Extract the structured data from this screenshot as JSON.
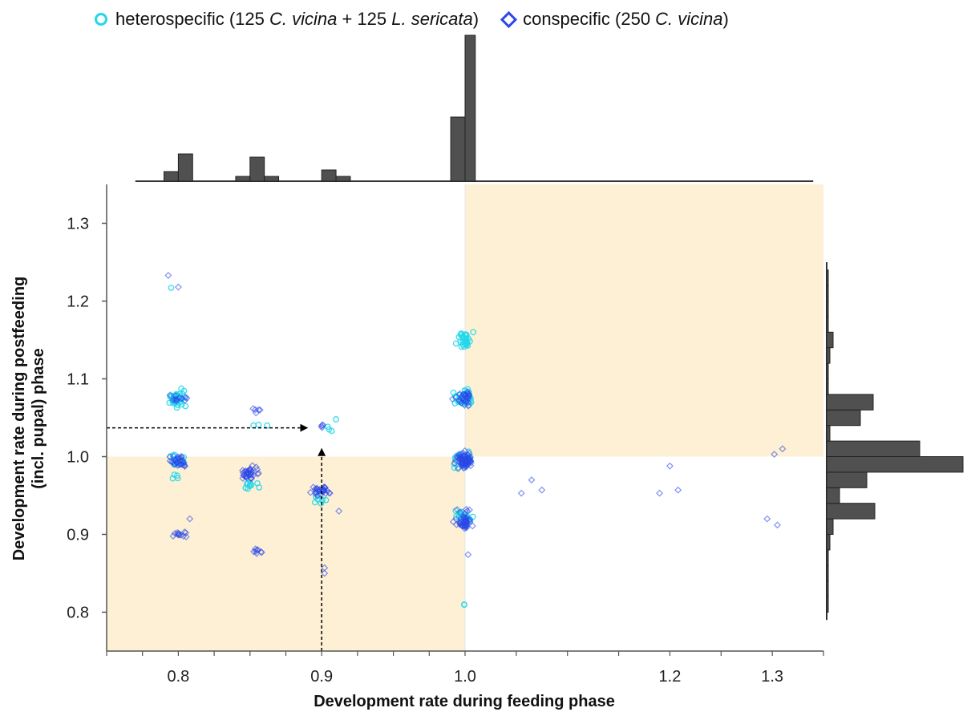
{
  "legend": {
    "hetero": {
      "prefix": "heterospecific (125 ",
      "species1": "C. vicina",
      "middle": " + 125 ",
      "species2": "L. sericata",
      "suffix": ")"
    },
    "con": {
      "prefix": "conspecific (250 ",
      "species1": "C. vicina",
      "suffix": ")"
    }
  },
  "colors": {
    "heterospecific": "#23d7eb",
    "conspecific": "#2b48e8",
    "conspecific_fill": "#8a80d8",
    "shade": "#fdf0d4",
    "histogram": "#505050",
    "arrow": "#000000"
  },
  "chart_data": {
    "type": "scatter",
    "xlabel": "Development rate during feeding phase",
    "ylabel_line1": "Development rate during postfeeding",
    "ylabel_line2": "(incl. pupal) phase",
    "x_ticks": [
      0.8,
      0.9,
      1.0,
      1.2,
      1.3
    ],
    "x_tick_labels": [
      "0.8",
      "0.9",
      "1.0",
      "1.2",
      "1.3"
    ],
    "y_ticks": [
      0.8,
      0.9,
      1.0,
      1.1,
      1.2,
      1.3
    ],
    "y_tick_labels": [
      "0.8",
      "0.9",
      "1.0",
      "1.1",
      "1.2",
      "1.3"
    ],
    "ylim": [
      0.75,
      1.35
    ],
    "x_axis_note": "broken/non-linear scale: 0.75–1.00 spans the left half, 1.00–1.35 the right half",
    "shaded_quadrants": [
      "x<1.0 & y<1.0",
      "x>1.0 & y>1.0"
    ],
    "series": [
      {
        "name": "heterospecific (125 C. vicina + 125 L. sericata)",
        "marker": "circle",
        "clusters": [
          {
            "x": 0.8,
            "y": 1.075,
            "n": 40,
            "sx": 0.008,
            "sy": 0.015
          },
          {
            "x": 0.8,
            "y": 0.995,
            "n": 18,
            "sx": 0.008,
            "sy": 0.01
          },
          {
            "x": 0.8,
            "y": 0.975,
            "n": 4,
            "sx": 0.006,
            "sy": 0.005
          },
          {
            "x": 0.855,
            "y": 1.04,
            "n": 2,
            "sx": 0.004,
            "sy": 0.005
          },
          {
            "x": 0.85,
            "y": 0.965,
            "n": 10,
            "sx": 0.008,
            "sy": 0.012
          },
          {
            "x": 0.9,
            "y": 0.945,
            "n": 8,
            "sx": 0.007,
            "sy": 0.012
          },
          {
            "x": 0.905,
            "y": 1.035,
            "n": 3,
            "sx": 0.005,
            "sy": 0.008
          },
          {
            "x": 1.0,
            "y": 1.15,
            "n": 30,
            "sx": 0.01,
            "sy": 0.012
          },
          {
            "x": 1.0,
            "y": 1.075,
            "n": 40,
            "sx": 0.01,
            "sy": 0.015
          },
          {
            "x": 1.0,
            "y": 0.995,
            "n": 30,
            "sx": 0.01,
            "sy": 0.015
          },
          {
            "x": 1.0,
            "y": 0.925,
            "n": 20,
            "sx": 0.01,
            "sy": 0.012
          },
          {
            "x": 1.0,
            "y": 0.81,
            "n": 2,
            "sx": 0.004,
            "sy": 0.002
          }
        ],
        "points": [
          [
            0.795,
            1.217
          ],
          [
            0.805,
            1.065
          ],
          [
            0.862,
            1.04
          ],
          [
            0.91,
            1.048
          ],
          [
            1.008,
            1.16
          ]
        ]
      },
      {
        "name": "conspecific (250 C. vicina)",
        "marker": "diamond",
        "clusters": [
          {
            "x": 0.8,
            "y": 1.075,
            "n": 12,
            "sx": 0.008,
            "sy": 0.012
          },
          {
            "x": 0.8,
            "y": 0.995,
            "n": 30,
            "sx": 0.008,
            "sy": 0.012
          },
          {
            "x": 0.8,
            "y": 0.9,
            "n": 12,
            "sx": 0.008,
            "sy": 0.006
          },
          {
            "x": 0.855,
            "y": 1.06,
            "n": 5,
            "sx": 0.004,
            "sy": 0.006
          },
          {
            "x": 0.85,
            "y": 0.98,
            "n": 35,
            "sx": 0.009,
            "sy": 0.014
          },
          {
            "x": 0.855,
            "y": 0.878,
            "n": 8,
            "sx": 0.005,
            "sy": 0.006
          },
          {
            "x": 0.9,
            "y": 0.955,
            "n": 30,
            "sx": 0.009,
            "sy": 0.01
          },
          {
            "x": 0.9,
            "y": 1.04,
            "n": 4,
            "sx": 0.004,
            "sy": 0.004
          },
          {
            "x": 1.0,
            "y": 1.075,
            "n": 30,
            "sx": 0.01,
            "sy": 0.015
          },
          {
            "x": 1.0,
            "y": 0.995,
            "n": 80,
            "sx": 0.009,
            "sy": 0.014
          },
          {
            "x": 1.0,
            "y": 0.915,
            "n": 45,
            "sx": 0.009,
            "sy": 0.01
          },
          {
            "x": 1.0,
            "y": 0.93,
            "n": 6,
            "sx": 0.008,
            "sy": 0.01
          }
        ],
        "points": [
          [
            0.793,
            1.233
          ],
          [
            0.8,
            1.218
          ],
          [
            0.808,
            0.92
          ],
          [
            0.902,
            0.857
          ],
          [
            0.902,
            0.85
          ],
          [
            0.912,
            0.93
          ],
          [
            1.003,
            0.874
          ],
          [
            1.055,
            0.953
          ],
          [
            1.065,
            0.97
          ],
          [
            1.075,
            0.957
          ],
          [
            1.19,
            0.953
          ],
          [
            1.2,
            0.988
          ],
          [
            1.208,
            0.957
          ],
          [
            1.295,
            0.92
          ],
          [
            1.305,
            0.912
          ],
          [
            1.302,
            1.003
          ],
          [
            1.31,
            1.01
          ]
        ]
      }
    ],
    "marginal_x_histogram": {
      "bin_edges": [
        0.77,
        0.78,
        0.79,
        0.8,
        0.81,
        0.82,
        0.83,
        0.84,
        0.85,
        0.86,
        0.87,
        0.88,
        0.89,
        0.9,
        0.91,
        0.92,
        0.93,
        0.94,
        0.95,
        0.96,
        0.97,
        0.98,
        0.99,
        1.0,
        1.01,
        1.02
      ],
      "heights": [
        0,
        0,
        12,
        34,
        0,
        0,
        0,
        6,
        30,
        6,
        0,
        0,
        0,
        14,
        6,
        0,
        0,
        0,
        0,
        0,
        0,
        0,
        80,
        182,
        0
      ],
      "x_end": 1.34
    },
    "marginal_y_histogram": {
      "bin_edges": [
        0.8,
        0.82,
        0.84,
        0.86,
        0.88,
        0.9,
        0.92,
        0.94,
        0.96,
        0.98,
        1.0,
        1.02,
        1.04,
        1.06,
        1.08,
        1.1,
        1.12,
        1.14,
        1.16,
        1.18,
        1.2,
        1.22,
        1.24
      ],
      "heights": [
        2,
        2,
        2,
        2,
        4,
        8,
        60,
        16,
        50,
        170,
        116,
        4,
        42,
        58,
        2,
        2,
        4,
        8,
        2,
        2,
        2,
        2
      ],
      "y_start": 0.79,
      "y_end": 1.25
    },
    "annotations": [
      {
        "type": "arrow",
        "from": [
          0.75,
          1.037
        ],
        "to": [
          0.89,
          1.037
        ]
      },
      {
        "type": "arrow",
        "from": [
          0.9,
          0.75
        ],
        "to": [
          0.9,
          1.01
        ]
      }
    ]
  }
}
